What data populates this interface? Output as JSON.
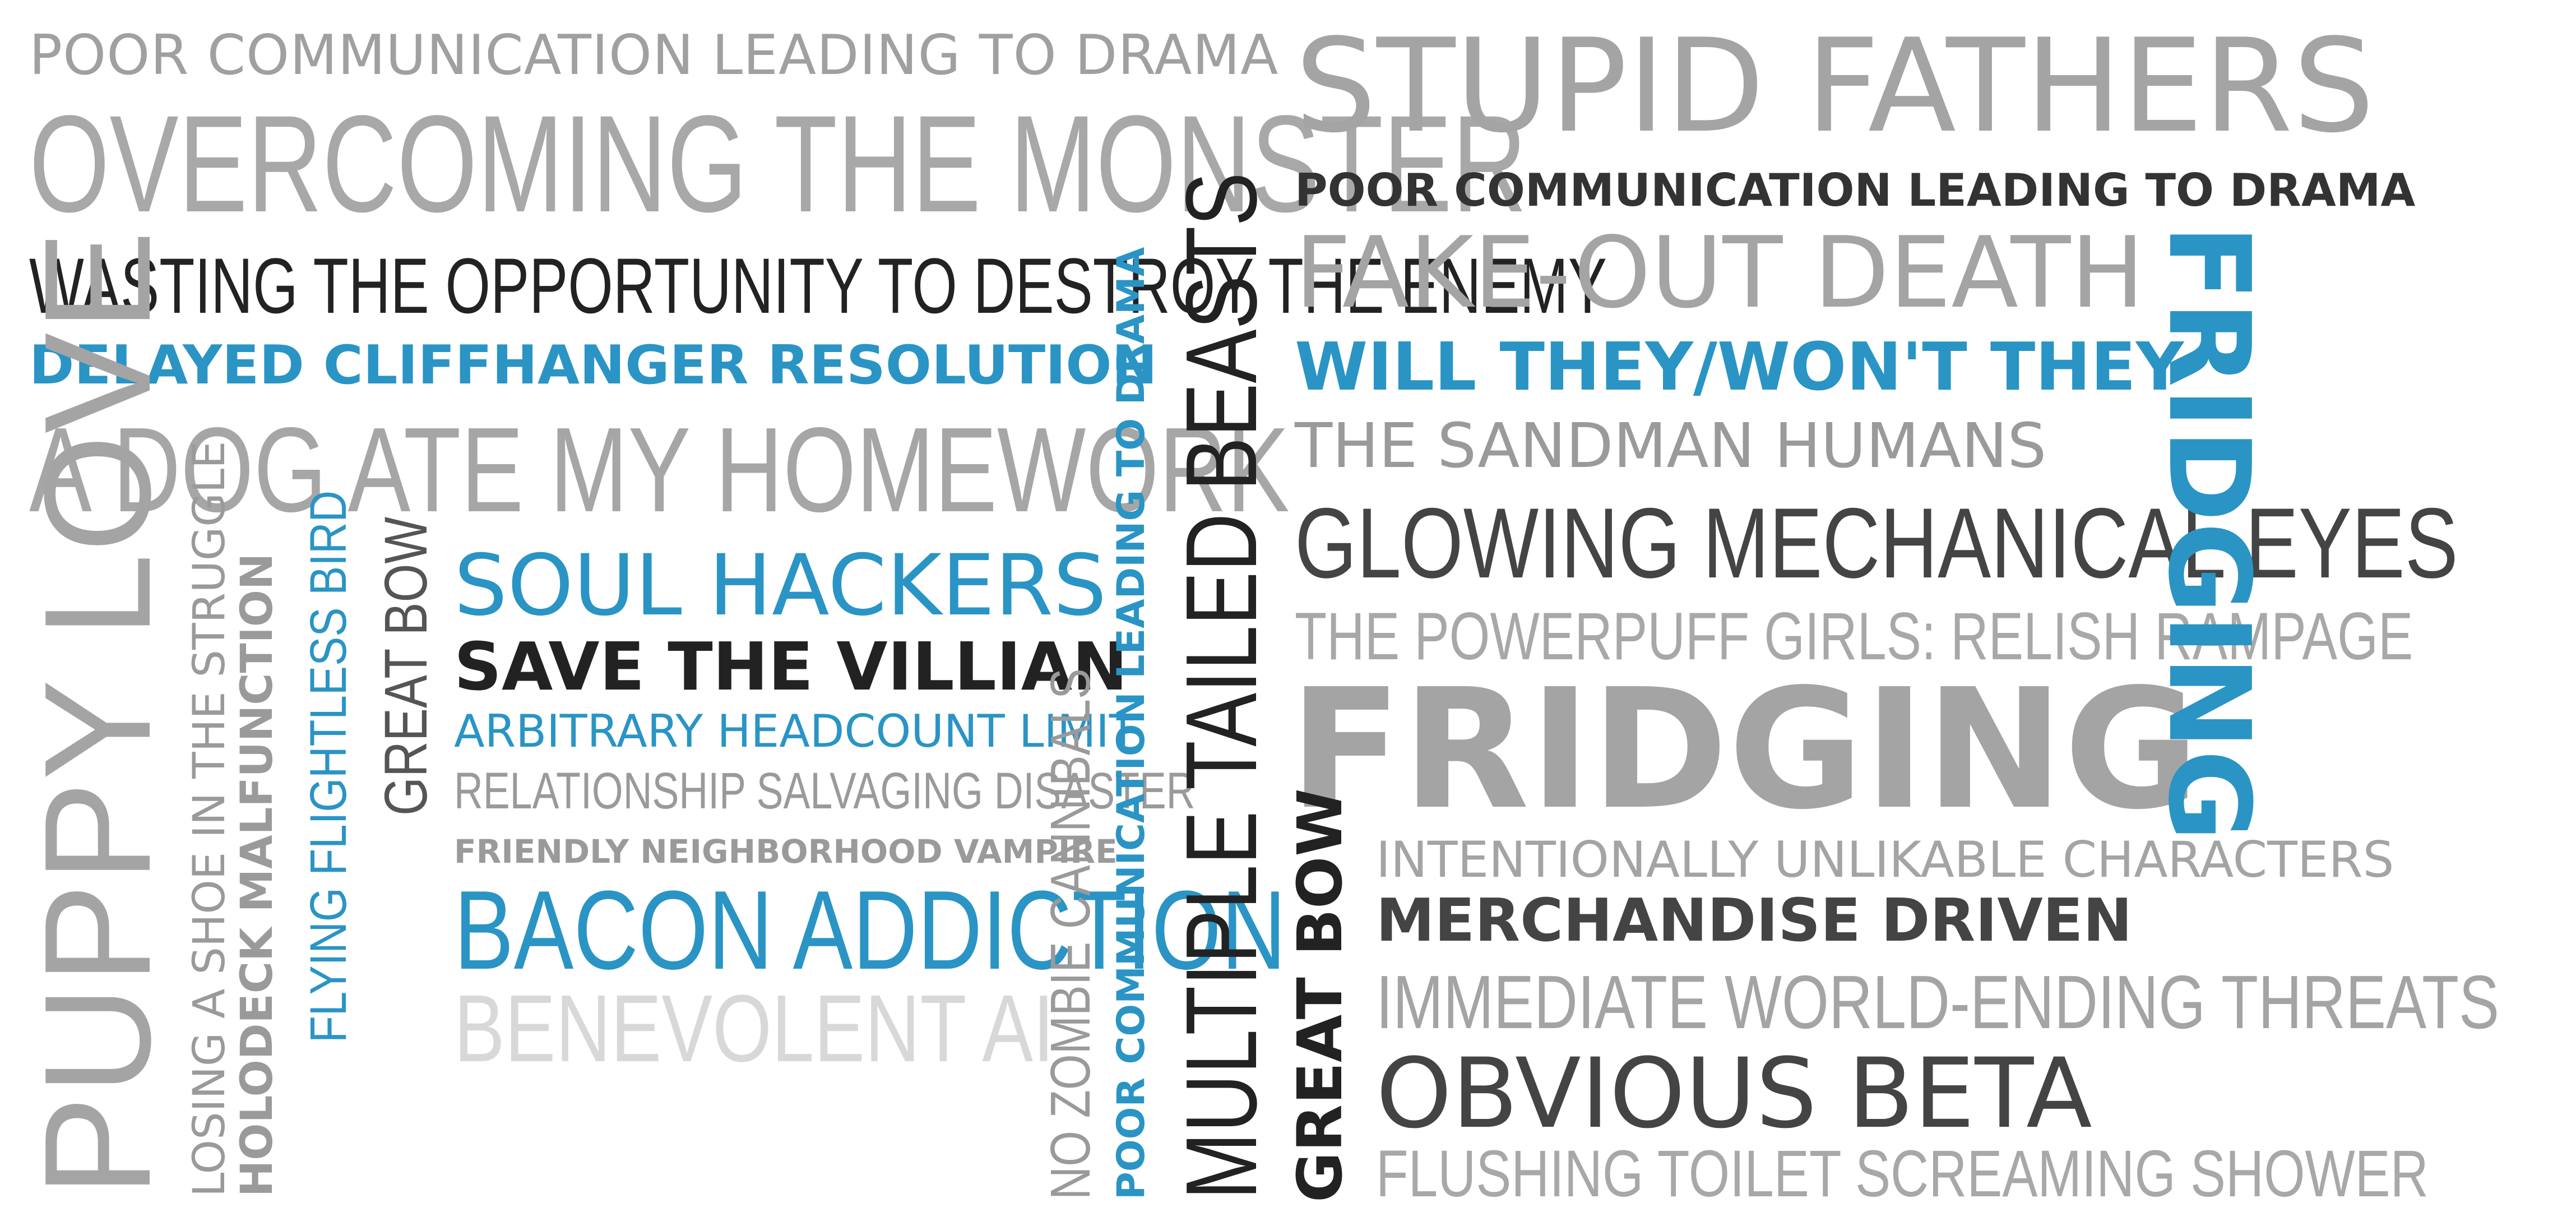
{
  "words": [
    {
      "text": "POOR COMMUNICATION LEADING TO DRAMA"
    },
    {
      "text": "OVERCOMING THE MONSTER"
    },
    {
      "text": "WASTING THE OPPORTUNITY TO DESTROY THE ENEMY"
    },
    {
      "text": "DELAYED CLIFFHANGER RESOLUTION"
    },
    {
      "text": "A DOG ATE MY HOMEWORK"
    },
    {
      "text": "PUPPY LOVE"
    },
    {
      "text": "LOSING A SHOE IN THE STRUGGLE"
    },
    {
      "text": "HOLODECK MALFUNCTION"
    },
    {
      "text": "FLYING FLIGHTLESS BIRD"
    },
    {
      "text": "GREAT BOW"
    },
    {
      "text": "SOUL HACKERS"
    },
    {
      "text": "SAVE THE VILLIAN"
    },
    {
      "text": "ARBITRARY HEADCOUNT LIMIT"
    },
    {
      "text": "RELATIONSHIP SALVAGING DISASTER"
    },
    {
      "text": "FRIENDLY NEIGHBORHOOD VAMPIRE"
    },
    {
      "text": "BACON ADDICTION"
    },
    {
      "text": "BENEVOLENT AI"
    },
    {
      "text": "NO ZOMBIE CANNIBALS"
    },
    {
      "text": "POOR COMMUNICATION LEADING TO DRAMA"
    },
    {
      "text": "MULTIPLE TAILED BEASTS"
    },
    {
      "text": "STUPID FATHERS"
    },
    {
      "text": "POOR COMMUNICATION LEADING TO DRAMA"
    },
    {
      "text": "FAKE-OUT DEATH"
    },
    {
      "text": "WILL THEY/WON'T THEY"
    },
    {
      "text": "THE SANDMAN HUMANS"
    },
    {
      "text": "GLOWING MECHANICAL EYES"
    },
    {
      "text": "THE POWERPUFF GIRLS: RELISH RAMPAGE"
    },
    {
      "text": "FRIDGING"
    },
    {
      "text": "FRIDGING"
    },
    {
      "text": "GREAT BOW"
    },
    {
      "text": "INTENTIONALLY UNLIKABLE CHARACTERS"
    },
    {
      "text": "MERCHANDISE DRIVEN"
    },
    {
      "text": "IMMEDIATE WORLD-ENDING THREATS"
    },
    {
      "text": "OBVIOUS BETA"
    },
    {
      "text": "FLUSHING TOILET SCREAMING SHOWER"
    }
  ],
  "colors": {
    "blue": "#2a94c5",
    "dark": "#222222",
    "mid_gray": "#a4a4a4",
    "light_gray": "#d8d8d8",
    "background": "#ffffff"
  }
}
